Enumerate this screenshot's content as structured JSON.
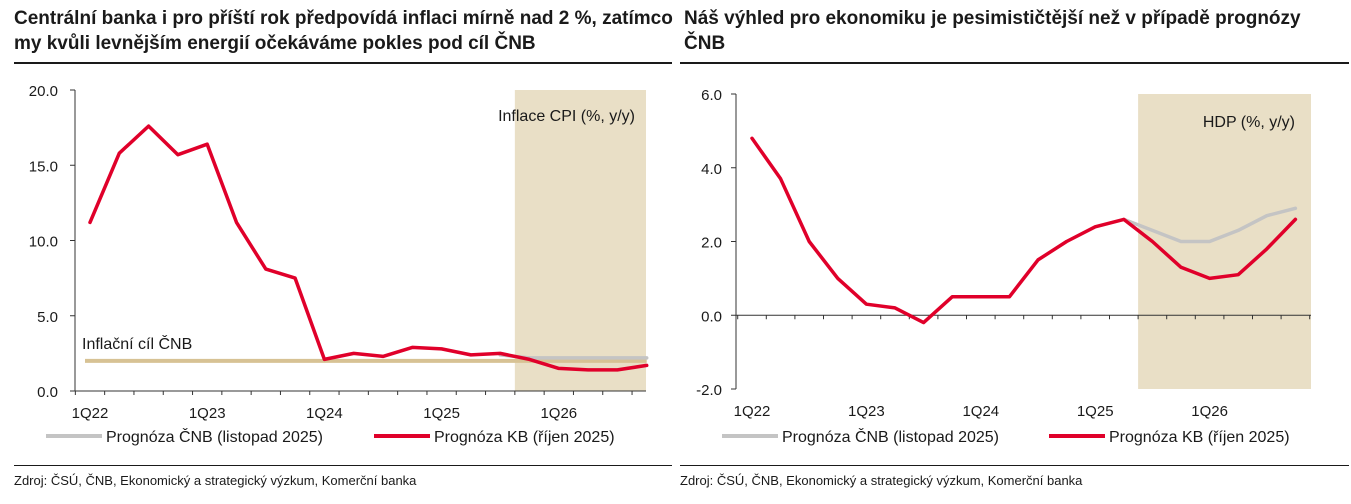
{
  "chart_data": [
    {
      "type": "line",
      "title": "Centrální banka i pro příští rok předpovídá inflaci mírně nad 2 %, zatímco my kvůli levnějším energií očekáváme pokles pod cíl ČNB",
      "inner_label": "Inflace CPI (%, y/y)",
      "target_label": "Inflační cíl ČNB",
      "source": "Zdroj: ČSÚ, ČNB, Ekonomický a strategický výzkum, Komerční banka",
      "ylim": [
        0,
        20
      ],
      "yticks": [
        "0.0",
        "5.0",
        "10.0",
        "15.0",
        "20.0"
      ],
      "x_tick_labels": [
        "1Q22",
        "1Q23",
        "1Q24",
        "1Q25",
        "1Q26"
      ],
      "x_start_index": 0,
      "n_points": 20,
      "forecast_start_index": 14.5,
      "target_value": 2.0,
      "series": [
        {
          "name": "Prognóza ČNB (listopad 2025)",
          "color": "#c4c4c4",
          "start_index": 14,
          "values": [
            2.4,
            2.2,
            2.2,
            2.2,
            2.2,
            2.2
          ]
        },
        {
          "name": "Prognóza KB (říjen 2025)",
          "color": "#e0002a",
          "start_index": 0,
          "values": [
            11.2,
            15.8,
            17.6,
            15.7,
            16.4,
            11.2,
            8.1,
            7.5,
            2.1,
            2.5,
            2.3,
            2.9,
            2.8,
            2.4,
            2.5,
            2.1,
            1.5,
            1.4,
            1.4,
            1.7
          ]
        }
      ],
      "legend": [
        "Prognóza ČNB (listopad 2025)",
        "Prognóza KB (říjen 2025)"
      ],
      "colors": {
        "forecast_band": "#e9dfc6",
        "target_line": "#d7c294",
        "cnb": "#c4c4c4",
        "kb": "#e0002a"
      }
    },
    {
      "type": "line",
      "title": "Náš výhled pro ekonomiku je pesimističtější než v případě prognózy ČNB",
      "inner_label": "HDP (%, y/y)",
      "source": "Zdroj: ČSÚ, ČNB, Ekonomický a strategický výzkum, Komerční banka",
      "ylim": [
        -2,
        6
      ],
      "yticks": [
        "-2.0",
        "0.0",
        "2.0",
        "4.0",
        "6.0"
      ],
      "x_tick_labels": [
        "1Q22",
        "1Q23",
        "1Q24",
        "1Q25",
        "1Q26"
      ],
      "n_points": 20,
      "forecast_start_index": 13.5,
      "series": [
        {
          "name": "Prognóza ČNB (listopad 2025)",
          "color": "#c4c4c4",
          "start_index": 13,
          "values": [
            2.6,
            2.3,
            2.0,
            2.0,
            2.3,
            2.7,
            2.9
          ]
        },
        {
          "name": "Prognóza KB (říjen 2025)",
          "color": "#e0002a",
          "start_index": 0,
          "values": [
            4.8,
            3.7,
            2.0,
            1.0,
            0.3,
            0.2,
            -0.2,
            0.5,
            0.5,
            0.5,
            1.5,
            2.0,
            2.4,
            2.6,
            2.0,
            1.3,
            1.0,
            1.1,
            1.8,
            2.6
          ]
        }
      ],
      "legend": [
        "Prognóza ČNB (listopad 2025)",
        "Prognóza KB (říjen 2025)"
      ],
      "colors": {
        "forecast_band": "#e9dfc6",
        "cnb": "#c4c4c4",
        "kb": "#e0002a"
      }
    }
  ]
}
